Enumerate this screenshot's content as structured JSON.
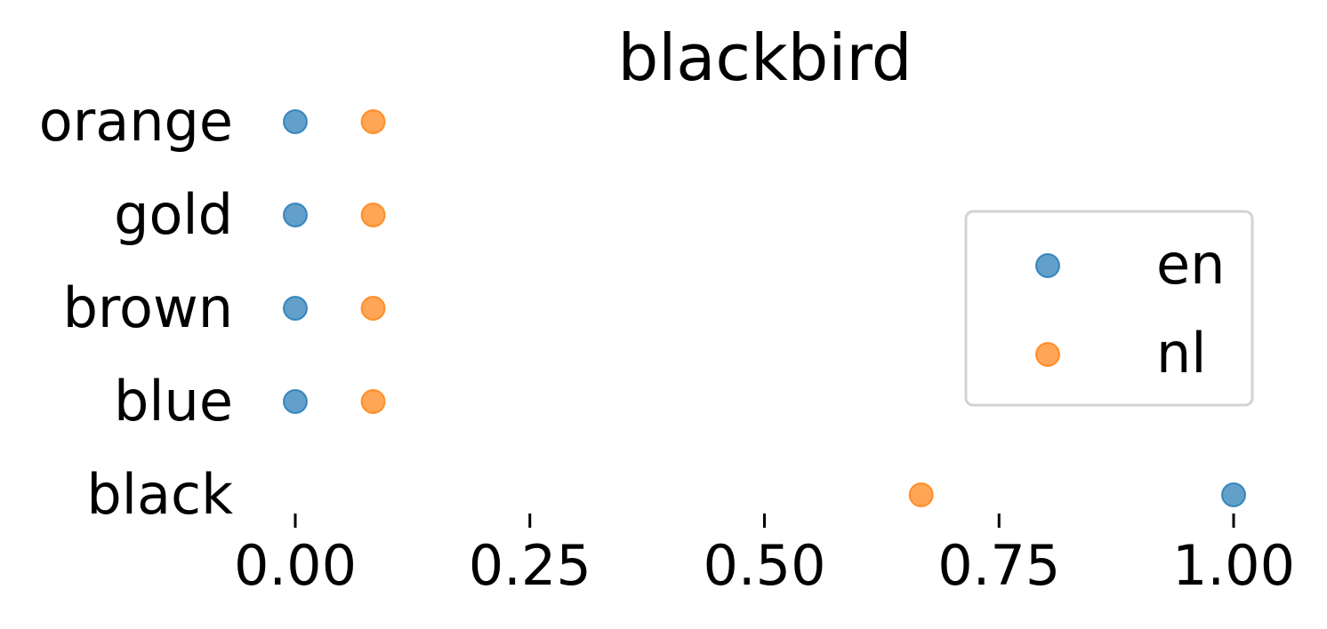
{
  "chart_data": {
    "type": "scatter",
    "title": "blackbird",
    "xlabel": "",
    "ylabel": "",
    "categories": [
      "black",
      "blue",
      "brown",
      "gold",
      "orange"
    ],
    "xlim": [
      0,
      1
    ],
    "xticks": [
      "0.00",
      "0.25",
      "0.50",
      "0.75",
      "1.00"
    ],
    "grid": false,
    "legend_position": "center-right",
    "series": [
      {
        "name": "en",
        "color": "#1f77b4",
        "values": [
          1.0,
          0.0,
          0.0,
          0.0,
          0.0
        ]
      },
      {
        "name": "nl",
        "color": "#ff7f0e",
        "values": [
          0.667,
          0.083,
          0.083,
          0.083,
          0.083
        ]
      }
    ]
  }
}
